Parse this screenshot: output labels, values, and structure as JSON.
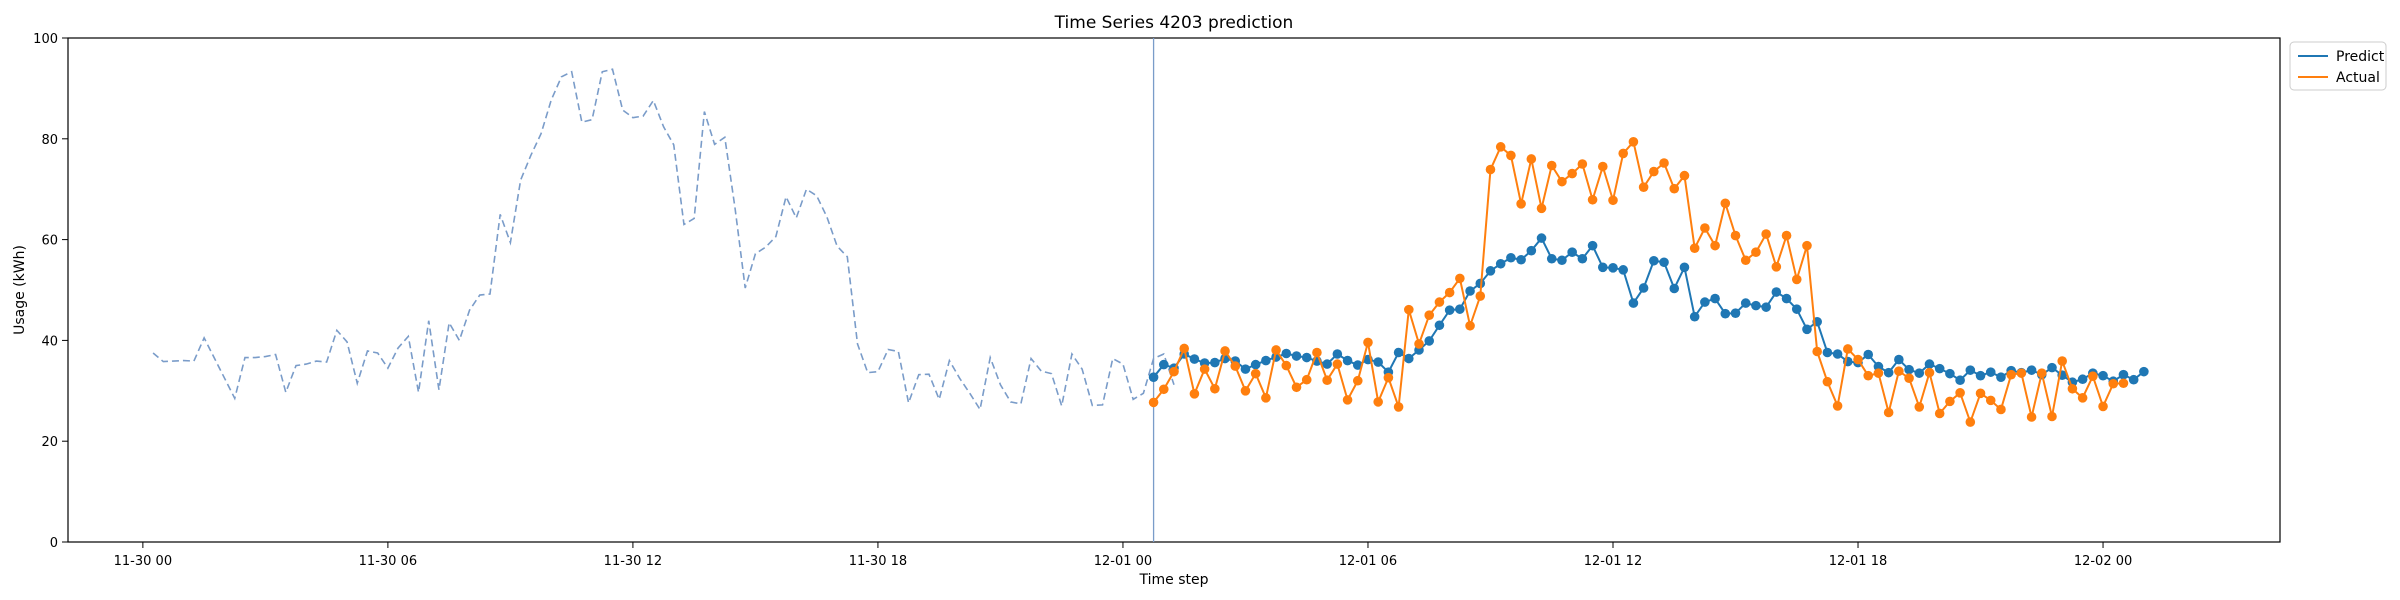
{
  "chart_data": {
    "type": "line",
    "title": "Time Series 4203 prediction",
    "xlabel": "Time step",
    "ylabel": "Usage (kWh)",
    "ylim": [
      0,
      100
    ],
    "yticks": [
      0,
      20,
      40,
      60,
      80,
      100
    ],
    "xlim": [
      "2024-11-29 22:10",
      "2024-12-02 04:20"
    ],
    "xticks": [
      {
        "label": "11-30 00",
        "value": "2024-11-30 00:00"
      },
      {
        "label": "11-30 06",
        "value": "2024-11-30 06:00"
      },
      {
        "label": "11-30 12",
        "value": "2024-11-30 12:00"
      },
      {
        "label": "11-30 18",
        "value": "2024-11-30 18:00"
      },
      {
        "label": "12-01 00",
        "value": "2024-12-01 00:00"
      },
      {
        "label": "12-01 06",
        "value": "2024-12-01 06:00"
      },
      {
        "label": "12-01 12",
        "value": "2024-12-01 12:00"
      },
      {
        "label": "12-01 18",
        "value": "2024-12-01 18:00"
      },
      {
        "label": "12-02 00",
        "value": "2024-12-02 00:00"
      }
    ],
    "forecast_start": "2024-12-01 00:45",
    "grid": false,
    "legend_position": "outside top-right",
    "series": [
      {
        "key": "history",
        "style": "dashed",
        "color": "#7a9cc9",
        "start": "2024-11-30 00:15",
        "interval_minutes": 15,
        "values": [
          37.5,
          35.8,
          35.9,
          36.0,
          35.9,
          40.5,
          36.5,
          32.5,
          28.5,
          36.6,
          36.6,
          36.8,
          37.2,
          29.7,
          35.0,
          35.3,
          35.9,
          35.7,
          42.0,
          39.7,
          31.5,
          37.9,
          37.5,
          34.5,
          38.5,
          40.8,
          29.7,
          43.9,
          30.2,
          43.5,
          40.0,
          46.0,
          49.0,
          49.2,
          65.0,
          59.4,
          71.8,
          76.7,
          81.0,
          87.7,
          92.3,
          93.3,
          83.3,
          83.8,
          93.3,
          93.8,
          85.7,
          84.2,
          84.5,
          87.6,
          82.4,
          78.8,
          63.0,
          64.2,
          85.4,
          78.9,
          80.3,
          66.3,
          50.4,
          57.2,
          58.5,
          60.6,
          68.5,
          64.3,
          70.0,
          68.7,
          64.5,
          58.7,
          56.6,
          39.3,
          33.6,
          33.8,
          38.2,
          37.8,
          27.6,
          33.2,
          33.3,
          28.3,
          36.0,
          32.5,
          29.5,
          26.3,
          36.6,
          31.2,
          27.8,
          27.4,
          36.4,
          33.9,
          33.4,
          27.0,
          37.3,
          34.3,
          27.1,
          27.2,
          36.4,
          35.3,
          28.3,
          29.5,
          36.4,
          37.3,
          31.2
        ]
      },
      {
        "name": "Predict",
        "key": "predict",
        "color": "#1f77b4",
        "start": "2024-12-01 00:45",
        "interval_minutes": 15,
        "values": [
          32.7,
          35.2,
          34.5,
          37.3,
          36.3,
          35.5,
          35.6,
          36.4,
          35.9,
          34.3,
          35.2,
          36.0,
          36.7,
          37.4,
          36.9,
          36.6,
          35.9,
          35.3,
          37.3,
          36.0,
          35.1,
          36.2,
          35.7,
          33.7,
          37.6,
          36.4,
          38.1,
          39.9,
          43.0,
          46.0,
          46.2,
          49.8,
          51.3,
          53.8,
          55.2,
          56.4,
          56.0,
          57.8,
          60.3,
          56.2,
          55.9,
          57.5,
          56.2,
          58.8,
          54.5,
          54.4,
          54.0,
          47.4,
          50.4,
          55.8,
          55.5,
          50.3,
          54.5,
          44.7,
          47.6,
          48.3,
          45.3,
          45.4,
          47.4,
          46.9,
          46.6,
          49.6,
          48.3,
          46.2,
          42.2,
          43.7,
          37.6,
          37.3,
          35.8,
          35.6,
          37.2,
          34.8,
          33.6,
          36.2,
          34.2,
          33.5,
          35.3,
          34.4,
          33.4,
          32.1,
          34.1,
          33.0,
          33.7,
          32.7,
          34.0,
          33.6,
          34.1,
          33.2,
          34.6,
          33.1,
          31.7,
          32.3,
          33.5,
          33.0,
          31.9,
          33.2,
          32.2,
          33.8
        ]
      },
      {
        "name": "Actual",
        "key": "actual",
        "color": "#ff7f0e",
        "start": "2024-12-01 00:45",
        "interval_minutes": 15,
        "values": [
          27.7,
          30.3,
          33.8,
          38.4,
          29.4,
          34.3,
          30.4,
          37.9,
          34.9,
          30.0,
          33.4,
          28.6,
          38.1,
          35.0,
          30.7,
          32.2,
          37.6,
          32.1,
          35.3,
          28.2,
          32.0,
          39.6,
          27.8,
          32.6,
          26.8,
          46.1,
          39.3,
          45.0,
          47.6,
          49.5,
          52.3,
          42.9,
          48.8,
          73.9,
          78.4,
          76.7,
          67.1,
          76.0,
          66.2,
          74.7,
          71.5,
          73.1,
          75.0,
          67.9,
          74.5,
          67.8,
          77.1,
          79.4,
          70.4,
          73.5,
          75.2,
          70.1,
          72.7,
          58.3,
          62.3,
          58.8,
          67.2,
          60.8,
          55.9,
          57.5,
          61.1,
          54.6,
          60.8,
          52.1,
          58.8,
          37.8,
          31.8,
          27.0,
          38.3,
          36.2,
          33.0,
          33.5,
          25.7,
          33.9,
          32.5,
          26.8,
          33.6,
          25.5,
          27.9,
          29.6,
          23.8,
          29.5,
          28.1,
          26.3,
          33.2,
          33.5,
          24.8,
          33.5,
          24.9,
          35.9,
          30.4,
          28.6,
          32.9,
          26.9,
          31.4,
          31.5
        ]
      }
    ]
  }
}
